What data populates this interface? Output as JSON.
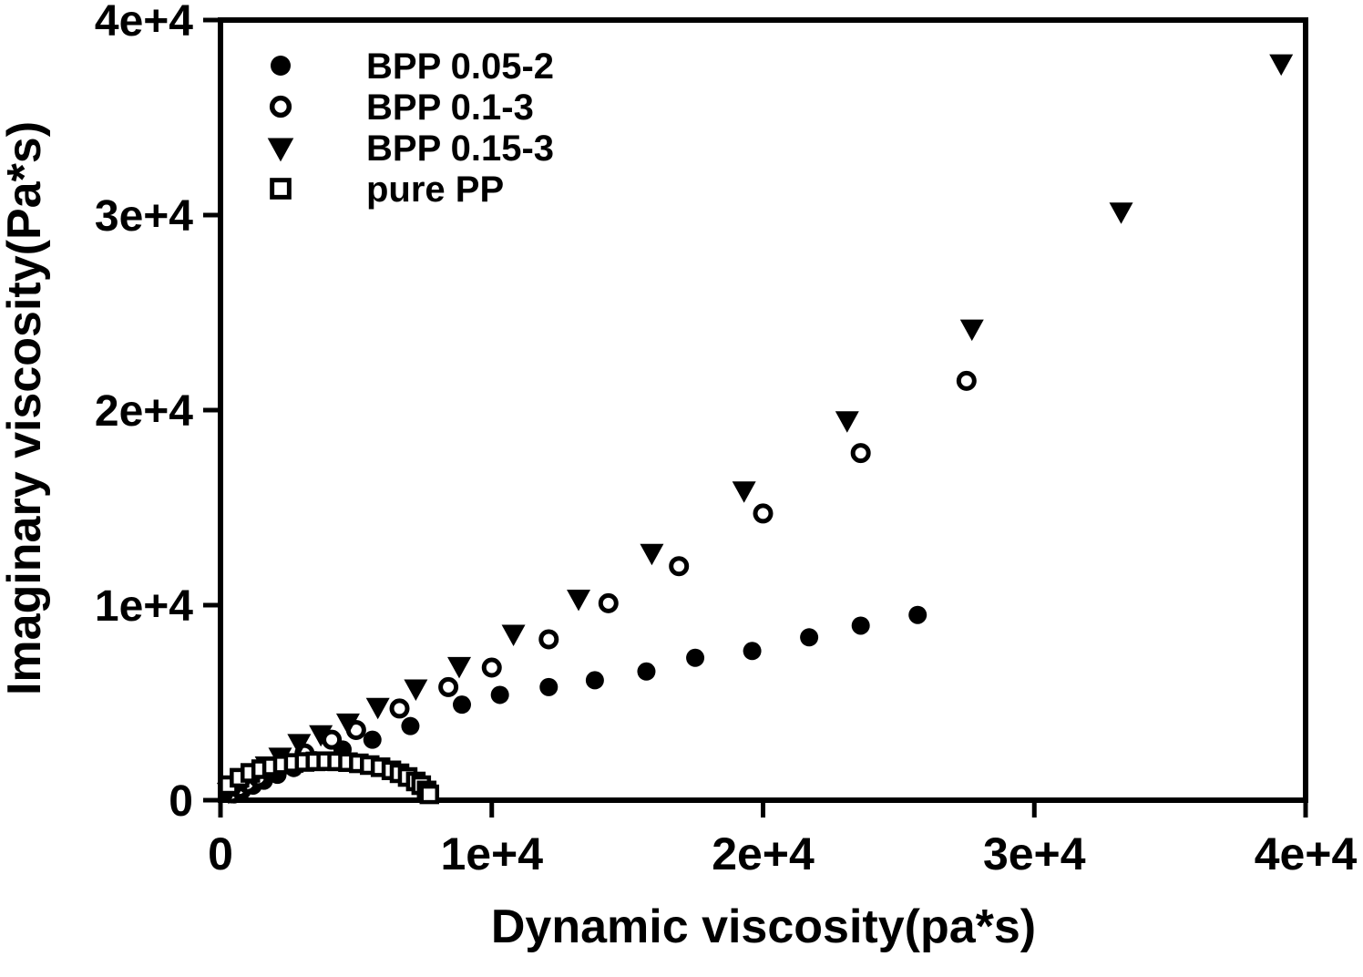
{
  "figure": {
    "background": "#ffffff",
    "foreground": "#000000"
  },
  "chart_data": {
    "type": "scatter",
    "title": "",
    "xlabel": "Dynamic viscosity(pa*s)",
    "ylabel": "Imaginary viscosity(Pa*s)",
    "xlim": [
      0,
      40000
    ],
    "ylim": [
      0,
      40000
    ],
    "grid": false,
    "legend_position": "inside-top-left",
    "x_ticks": [
      {
        "label": "0",
        "value": 0
      },
      {
        "label": "1e+4",
        "value": 10000
      },
      {
        "label": "2e+4",
        "value": 20000
      },
      {
        "label": "3e+4",
        "value": 30000
      },
      {
        "label": "4e+4",
        "value": 40000
      }
    ],
    "y_ticks": [
      {
        "label": "0",
        "value": 0
      },
      {
        "label": "1e+4",
        "value": 10000
      },
      {
        "label": "2e+4",
        "value": 20000
      },
      {
        "label": "3e+4",
        "value": 30000
      },
      {
        "label": "4e+4",
        "value": 40000
      }
    ],
    "series": [
      {
        "name": "BPP 0.05-2",
        "marker": "filled-circle",
        "color": "#000000",
        "points": [
          [
            500,
            300
          ],
          [
            800,
            500
          ],
          [
            1200,
            750
          ],
          [
            1600,
            1000
          ],
          [
            2100,
            1300
          ],
          [
            2700,
            1650
          ],
          [
            3500,
            2050
          ],
          [
            4500,
            2600
          ],
          [
            5600,
            3100
          ],
          [
            7000,
            3800
          ],
          [
            8900,
            4900
          ],
          [
            10300,
            5400
          ],
          [
            12100,
            5800
          ],
          [
            13800,
            6150
          ],
          [
            15700,
            6600
          ],
          [
            17500,
            7300
          ],
          [
            19600,
            7650
          ],
          [
            21700,
            8350
          ],
          [
            23600,
            8950
          ],
          [
            25700,
            9500
          ]
        ]
      },
      {
        "name": "BPP 0.1-3",
        "marker": "open-circle",
        "color": "#000000",
        "points": [
          [
            400,
            350
          ],
          [
            700,
            600
          ],
          [
            1000,
            850
          ],
          [
            1400,
            1150
          ],
          [
            1800,
            1500
          ],
          [
            2400,
            1900
          ],
          [
            3100,
            2400
          ],
          [
            4100,
            3100
          ],
          [
            5000,
            3600
          ],
          [
            6600,
            4700
          ],
          [
            8400,
            5800
          ],
          [
            10000,
            6800
          ],
          [
            12100,
            8250
          ],
          [
            14300,
            10100
          ],
          [
            16900,
            12000
          ],
          [
            20000,
            14700
          ],
          [
            23600,
            17800
          ],
          [
            27500,
            21500
          ]
        ]
      },
      {
        "name": "BPP 0.15-3",
        "marker": "filled-triangle-down",
        "color": "#000000",
        "points": [
          [
            300,
            450
          ],
          [
            600,
            750
          ],
          [
            900,
            1050
          ],
          [
            1300,
            1400
          ],
          [
            1700,
            1800
          ],
          [
            2200,
            2250
          ],
          [
            2900,
            2950
          ],
          [
            3700,
            3400
          ],
          [
            4700,
            4000
          ],
          [
            5800,
            4800
          ],
          [
            7200,
            5750
          ],
          [
            8800,
            6900
          ],
          [
            10800,
            8550
          ],
          [
            13200,
            10350
          ],
          [
            15900,
            12700
          ],
          [
            19300,
            15900
          ],
          [
            23100,
            19500
          ],
          [
            27700,
            24200
          ],
          [
            33200,
            30200
          ],
          [
            39100,
            37800
          ]
        ]
      },
      {
        "name": "pure PP",
        "marker": "open-square",
        "color": "#000000",
        "points": [
          [
            300,
            770
          ],
          [
            700,
            1150
          ],
          [
            1100,
            1400
          ],
          [
            1500,
            1590
          ],
          [
            1900,
            1730
          ],
          [
            2300,
            1830
          ],
          [
            2700,
            1910
          ],
          [
            3100,
            1960
          ],
          [
            3500,
            1990
          ],
          [
            3900,
            2000
          ],
          [
            4300,
            1990
          ],
          [
            4700,
            1950
          ],
          [
            5100,
            1890
          ],
          [
            5500,
            1800
          ],
          [
            5900,
            1690
          ],
          [
            6300,
            1530
          ],
          [
            6600,
            1380
          ],
          [
            6900,
            1190
          ],
          [
            7200,
            960
          ],
          [
            7400,
            770
          ],
          [
            7600,
            500
          ],
          [
            7700,
            300
          ]
        ]
      }
    ]
  }
}
